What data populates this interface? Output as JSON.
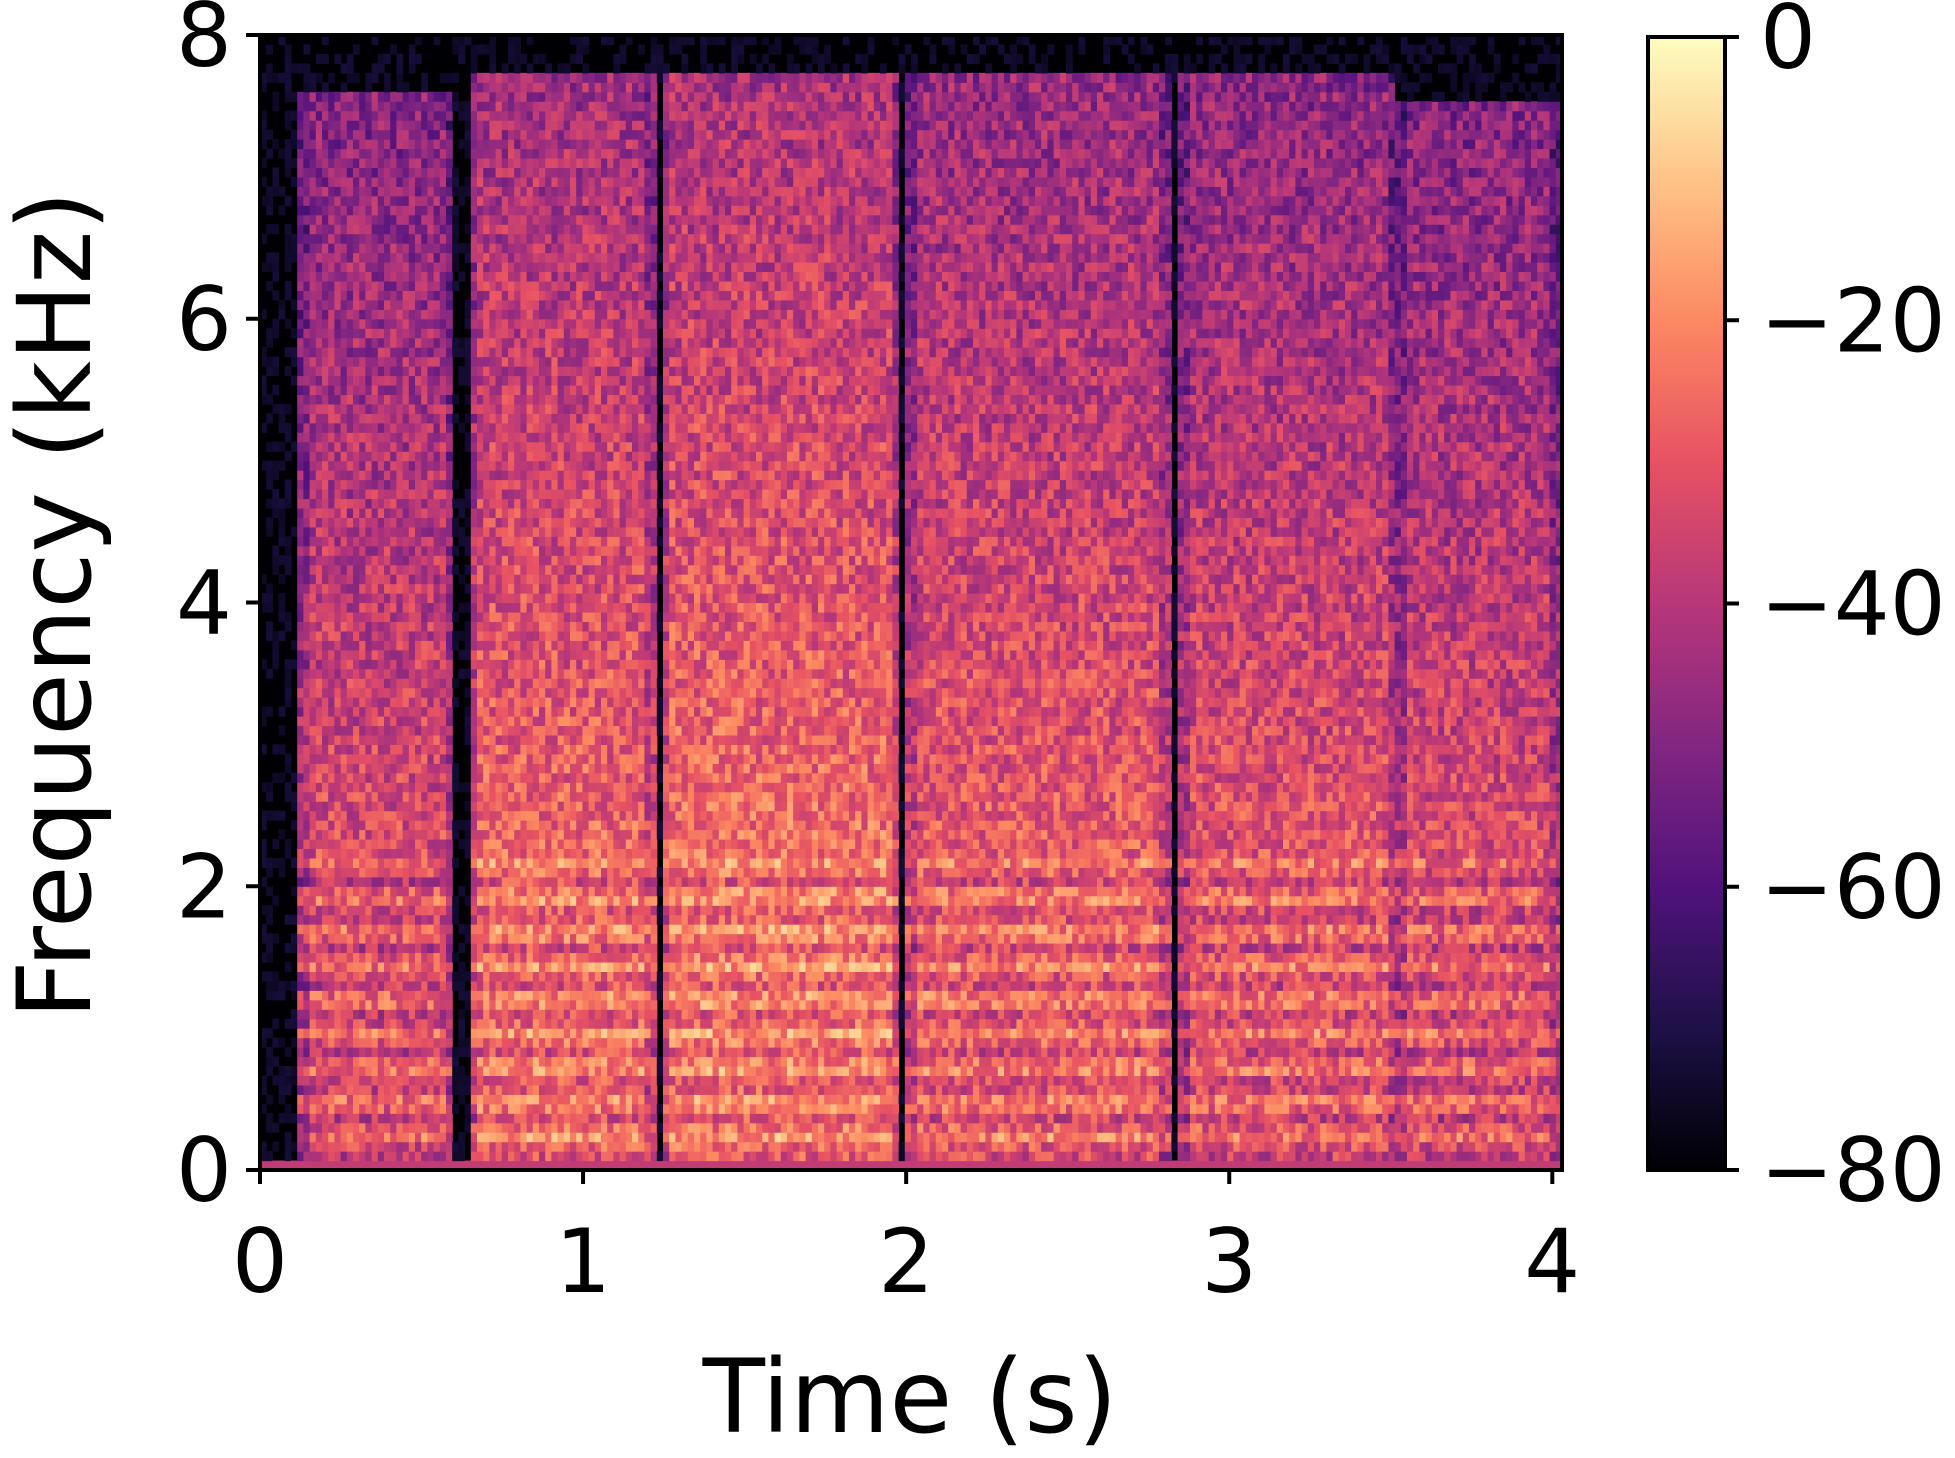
{
  "chart_data": {
    "type": "heatmap",
    "subtype": "spectrogram",
    "title": "",
    "xlabel": "Time (s)",
    "ylabel": "Frequency (kHz)",
    "xlim": [
      0,
      4.03
    ],
    "ylim": [
      0,
      8
    ],
    "x_ticks": [
      "0",
      "1",
      "2",
      "3",
      "4"
    ],
    "y_ticks": [
      "0",
      "2",
      "4",
      "6",
      "8"
    ],
    "grid": false,
    "colormap": "magma",
    "colormap_stops": [
      "#000004",
      "#1d1147",
      "#51127c",
      "#822681",
      "#b73779",
      "#e75263",
      "#fc8961",
      "#fec488",
      "#fcfdbf"
    ],
    "colorbar": {
      "range": [
        -80,
        0
      ],
      "ticks": [
        "0",
        "−20",
        "−40",
        "−60",
        "−80"
      ]
    },
    "segments": [
      {
        "start": 0.12,
        "end": 0.6,
        "max_khz": 7.6,
        "level_db": -32
      },
      {
        "start": 0.65,
        "end": 1.22,
        "max_khz": 7.7,
        "level_db": -26
      },
      {
        "start": 1.24,
        "end": 1.98,
        "max_khz": 7.7,
        "level_db": -24
      },
      {
        "start": 2.0,
        "end": 2.82,
        "max_khz": 7.7,
        "level_db": -28
      },
      {
        "start": 2.84,
        "end": 3.52,
        "max_khz": 7.7,
        "level_db": -30
      },
      {
        "start": 3.52,
        "end": 4.03,
        "max_khz": 7.5,
        "level_db": -32
      }
    ]
  }
}
